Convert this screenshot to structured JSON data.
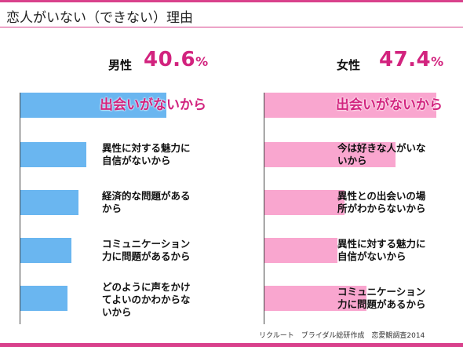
{
  "title": "恋人がいない（できない）理由",
  "source": "リクルート　ブライダル総研作成　恋愛観調査2014",
  "colors": {
    "accent": "#d2237e",
    "rule": "#d9418c",
    "male_bar": "#6ab6f0",
    "female_bar": "#f9a6cf"
  },
  "chart_data": [
    {
      "type": "bar",
      "orientation": "horizontal",
      "group": "男性",
      "headline_value": "40.6",
      "headline_unit": "%",
      "categories": [
        "出会いがないから",
        "異性に対する魅力に\n自信がないから",
        "経済的な問題がある\nから",
        "コミュニケーション\n力に問題があるから",
        "どのように声をかけ\nてよいのかわからな\nいから"
      ],
      "values": [
        0.4,
        0.18,
        0.16,
        0.14,
        0.13
      ]
    },
    {
      "type": "bar",
      "orientation": "horizontal",
      "group": "女性",
      "headline_value": "47.4",
      "headline_unit": "%",
      "categories": [
        "出会いがないから",
        "今は好きな人がいな\nいから",
        "異性との出会いの場\n所がわからないから",
        "異性に対する魅力に\n自信がないから",
        "コミュニケーション\n力に問題があるから"
      ],
      "values": [
        0.47,
        0.36,
        0.22,
        0.2,
        0.28
      ]
    }
  ]
}
